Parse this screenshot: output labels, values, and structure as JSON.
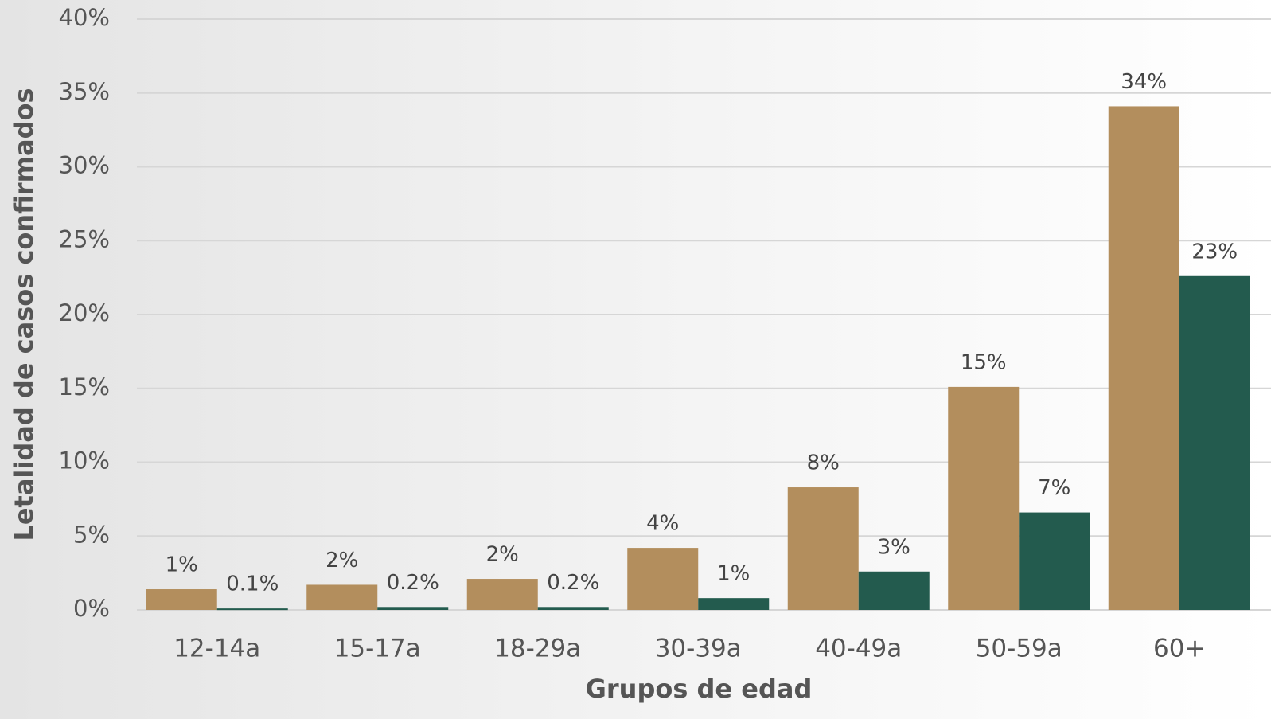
{
  "chart_data": {
    "type": "bar",
    "x_label": "Grupos de edad",
    "y_label": "Letalidad de casos confirmados",
    "categories": [
      "12-14a",
      "15-17a",
      "18-29a",
      "30-39a",
      "40-49a",
      "50-59a",
      "60+"
    ],
    "series": [
      {
        "color": "#b38e5d",
        "values": [
          1.4,
          1.7,
          2.1,
          4.2,
          8.3,
          15.1,
          34.1
        ],
        "value_labels": [
          "1%",
          "2%",
          "2%",
          "4%",
          "8%",
          "15%",
          "34%"
        ]
      },
      {
        "color": "#235b4e",
        "values": [
          0.1,
          0.2,
          0.2,
          0.8,
          2.6,
          6.6,
          22.6
        ],
        "value_labels": [
          "0.1%",
          "0.2%",
          "0.2%",
          "1%",
          "3%",
          "7%",
          "23%"
        ]
      }
    ],
    "ylim": [
      0,
      40
    ],
    "yticks": [
      {
        "value": 0,
        "label": "0%"
      },
      {
        "value": 5,
        "label": "5%"
      },
      {
        "value": 10,
        "label": "10%"
      },
      {
        "value": 15,
        "label": "15%"
      },
      {
        "value": 20,
        "label": "20%"
      },
      {
        "value": 25,
        "label": "25%"
      },
      {
        "value": 30,
        "label": "30%"
      },
      {
        "value": 35,
        "label": "35%"
      },
      {
        "value": 40,
        "label": "40%"
      }
    ],
    "grid": true
  }
}
